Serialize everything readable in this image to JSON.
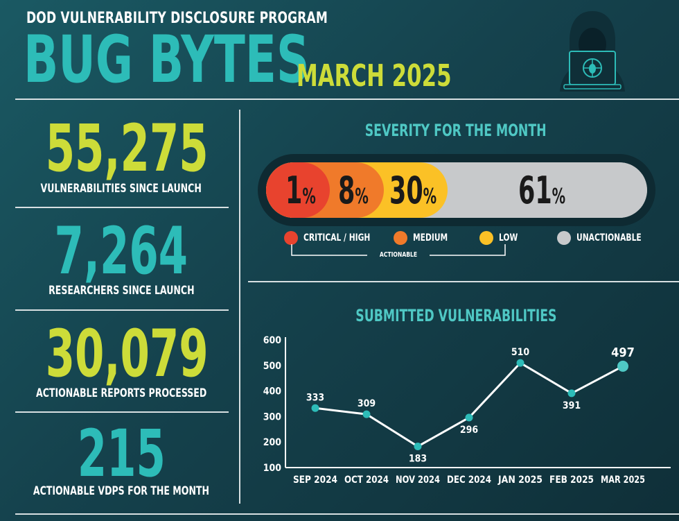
{
  "header": {
    "program": "DOD VULNERABILITY DISCLOSURE PROGRAM",
    "title": "BUG BYTES",
    "month": "MARCH 2025",
    "logo_icon": "hacker-laptop-icon"
  },
  "stats": [
    {
      "value": "55,275",
      "label": "VULNERABILITIES SINCE LAUNCH",
      "color": "#cddc39"
    },
    {
      "value": "7,264",
      "label": "RESEARCHERS SINCE LAUNCH",
      "color": "#2dbcb8"
    },
    {
      "value": "30,079",
      "label": "ACTIONABLE REPORTS PROCESSED",
      "color": "#cddc39"
    },
    {
      "value": "215",
      "label": "ACTIONABLE VDPS FOR THE MONTH",
      "color": "#2dbcb8"
    }
  ],
  "chart_data": [
    {
      "type": "bar",
      "title": "SEVERITY FOR THE MONTH",
      "categories": [
        "CRITICAL / HIGH",
        "MEDIUM",
        "LOW",
        "UNACTIONABLE"
      ],
      "values": [
        1,
        8,
        30,
        61
      ],
      "unit": "%",
      "colors": [
        "#e8432e",
        "#f07a2a",
        "#fbc126",
        "#c7c9cb"
      ],
      "group_label": "ACTIONABLE",
      "legend": "bottom"
    },
    {
      "type": "line",
      "title": "SUBMITTED VULNERABILITIES",
      "categories": [
        "SEP 2024",
        "OCT 2024",
        "NOV 2024",
        "DEC 2024",
        "JAN 2025",
        "FEB 2025",
        "MAR 2025"
      ],
      "values": [
        333,
        309,
        183,
        296,
        510,
        391,
        497
      ],
      "ylim": [
        100,
        600
      ],
      "yticks": [
        100,
        200,
        300,
        400,
        500,
        600
      ],
      "colors": {
        "line": "#ffffff",
        "point": "#2dbcb8",
        "highlight": "#4fc8c4"
      }
    }
  ]
}
